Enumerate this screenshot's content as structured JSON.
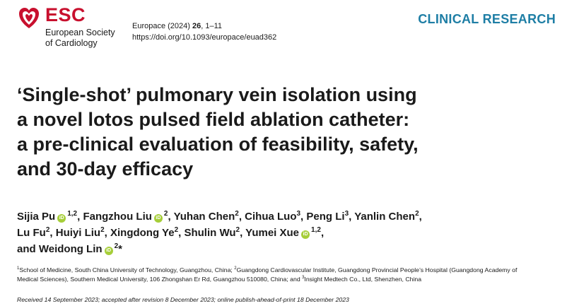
{
  "header": {
    "brand": "ESC",
    "society_line1": "European Society",
    "society_line2": "of Cardiology",
    "journal_prefix": "Europace (2024) ",
    "journal_volume": "26",
    "journal_pages": ", 1–11",
    "doi": "https://doi.org/10.1093/europace/euad362",
    "category": "CLINICAL RESEARCH",
    "brand_color": "#c8102e",
    "category_color": "#1e7ea5"
  },
  "title_lines": [
    "‘Single-shot’ pulmonary vein isolation using",
    "a novel lotos pulsed field ablation catheter:",
    "a pre-clinical evaluation of feasibility, safety,",
    "and 30-day efficacy"
  ],
  "authors": {
    "pu": "Sijia Pu",
    "pu_sup": "1,2",
    "liu_f": "Fangzhou Liu",
    "liu_f_sup": "2",
    "chen_yh": "Yuhan Chen",
    "chen_yh_sup": "2",
    "luo": "Cihua Luo",
    "luo_sup": "3",
    "li": "Peng Li",
    "li_sup": "3",
    "chen_yl": "Yanlin Chen",
    "chen_yl_sup": "2",
    "fu": "Lu Fu",
    "fu_sup": "2",
    "liu_h": "Huiyi Liu",
    "liu_h_sup": "2",
    "ye": "Xingdong Ye",
    "ye_sup": "2",
    "wu": "Shulin Wu",
    "wu_sup": "2",
    "xue": "Yumei Xue",
    "xue_sup": "1,2",
    "and": "and",
    "lin": "Weidong Lin",
    "lin_sup": "2",
    "corresponding_mark": "*",
    "orcid_label": "iD",
    "orcid_color": "#a6ce39"
  },
  "affiliations": {
    "a1_num": "1",
    "a1_text": "School of Medicine, South China University of Technology, Guangzhou, China; ",
    "a2_num": "2",
    "a2_text_part1": "Guangdong Cardiovascular Institute, Guangdong Provincial People’s Hospital (Guangdong Academy of",
    "a2_text_part2": "Medical Sciences), Southern Medical University, 106 Zhongshan Er Rd, Guangzhou 510080, China; and ",
    "a3_num": "3",
    "a3_text": "Insight Medtech Co., Ltd, Shenzhen, China"
  },
  "received": "Received 14 September 2023; accepted after revision 8 December 2023; online publish-ahead-of-print 18 December 2023"
}
